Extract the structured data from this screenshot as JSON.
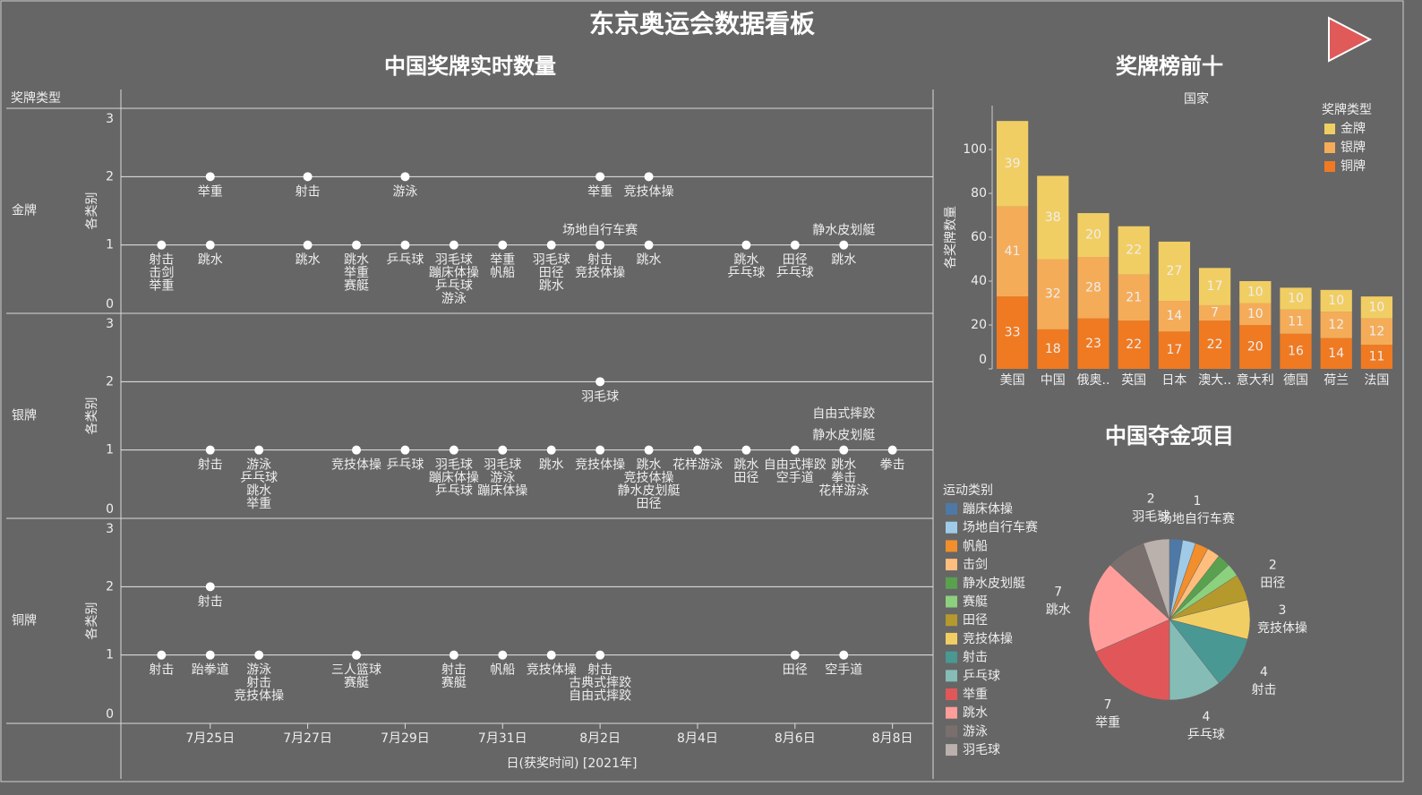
{
  "title": "东京奥运会数据看板",
  "chart_data": [
    {
      "type": "dot",
      "title": "中国奖牌实时数量",
      "row_title": "奖牌类型",
      "xlabel": "日(获奖时间) [2021年]",
      "ylabel": "各类别",
      "xlim": [
        "2021-07-23T04:00",
        "2021-08-08T20:00"
      ],
      "xticks": [
        {
          "value": "2021-07-25",
          "label": "7月25日"
        },
        {
          "value": "2021-07-27",
          "label": "7月27日"
        },
        {
          "value": "2021-07-29",
          "label": "7月29日"
        },
        {
          "value": "2021-07-31",
          "label": "7月31日"
        },
        {
          "value": "2021-08-02",
          "label": "8月2日"
        },
        {
          "value": "2021-08-04",
          "label": "8月4日"
        },
        {
          "value": "2021-08-06",
          "label": "8月6日"
        },
        {
          "value": "2021-08-08",
          "label": "8月8日"
        }
      ],
      "ylim": [
        0,
        3
      ],
      "yticks": [
        0,
        1,
        2,
        3
      ],
      "grid": true,
      "color": "#ffffff",
      "panels": [
        {
          "name": "金牌",
          "x": [
            "2021-07-24",
            "2021-07-25",
            "2021-07-25",
            "2021-07-27",
            "2021-07-27",
            "2021-07-28",
            "2021-07-29",
            "2021-07-29",
            "2021-07-30",
            "2021-07-31",
            "2021-08-01",
            "2021-08-02",
            "2021-08-02",
            "2021-08-03",
            "2021-08-03",
            "2021-08-05",
            "2021-08-06",
            "2021-08-07"
          ],
          "values": [
            1,
            2,
            1,
            2,
            1,
            1,
            2,
            1,
            1,
            1,
            1,
            2,
            1,
            2,
            1,
            1,
            1,
            1
          ],
          "labels": [
            [
              "射击",
              "击剑",
              "举重"
            ],
            [
              "举重"
            ],
            [
              "跳水"
            ],
            [
              "射击"
            ],
            [
              "跳水"
            ],
            [
              "跳水",
              "举重",
              "赛艇"
            ],
            [
              "游泳"
            ],
            [
              "乒乓球"
            ],
            [
              "羽毛球",
              "蹦床体操",
              "乒乓球",
              "游泳"
            ],
            [
              "举重",
              "帆船"
            ],
            [
              "羽毛球",
              "田径",
              "跳水"
            ],
            [
              "举重"
            ],
            [
              "射击",
              "竞技体操"
            ],
            [
              "竞技体操"
            ],
            [
              "跳水"
            ],
            [
              "跳水",
              "乒乓球"
            ],
            [
              "田径",
              "乒乓球"
            ],
            [
              "跳水"
            ]
          ],
          "labels_above": [
            null,
            null,
            null,
            null,
            null,
            null,
            null,
            null,
            null,
            null,
            null,
            null,
            [
              "场地自行车赛"
            ],
            null,
            null,
            null,
            null,
            [
              "静水皮划艇"
            ]
          ]
        },
        {
          "name": "银牌",
          "x": [
            "2021-07-25",
            "2021-07-26",
            "2021-07-28",
            "2021-07-29",
            "2021-07-30",
            "2021-07-31",
            "2021-08-01",
            "2021-08-02",
            "2021-08-02",
            "2021-08-03",
            "2021-08-04",
            "2021-08-05",
            "2021-08-06",
            "2021-08-07",
            "2021-08-08"
          ],
          "values": [
            1,
            1,
            1,
            1,
            1,
            1,
            1,
            2,
            1,
            1,
            1,
            1,
            1,
            1,
            1
          ],
          "labels": [
            [
              "射击"
            ],
            [
              "游泳",
              "乒乓球",
              "跳水",
              "举重"
            ],
            [
              "竞技体操"
            ],
            [
              "乒乓球"
            ],
            [
              "羽毛球",
              "蹦床体操",
              "乒乓球"
            ],
            [
              "羽毛球",
              "游泳",
              "蹦床体操"
            ],
            [
              "跳水"
            ],
            [
              "羽毛球"
            ],
            [
              "竞技体操"
            ],
            [
              "跳水",
              "竞技体操",
              "静水皮划艇",
              "田径"
            ],
            [
              "花样游泳"
            ],
            [
              "跳水",
              "田径"
            ],
            [
              "自由式摔跤",
              "空手道"
            ],
            [
              "跳水",
              "拳击",
              "花样游泳"
            ],
            [
              "拳击"
            ]
          ],
          "labels_above": [
            null,
            null,
            null,
            null,
            null,
            null,
            null,
            null,
            null,
            null,
            null,
            null,
            null,
            [
              "自由式摔跤",
              "静水皮划艇"
            ],
            null
          ]
        },
        {
          "name": "铜牌",
          "x": [
            "2021-07-24",
            "2021-07-25",
            "2021-07-25",
            "2021-07-26",
            "2021-07-28",
            "2021-07-30",
            "2021-07-31",
            "2021-08-01",
            "2021-08-02",
            "2021-08-06",
            "2021-08-07"
          ],
          "values": [
            1,
            2,
            1,
            1,
            1,
            1,
            1,
            1,
            1,
            1,
            1
          ],
          "labels": [
            [
              "射击"
            ],
            [
              "射击"
            ],
            [
              "跆拳道"
            ],
            [
              "游泳",
              "射击",
              "竞技体操"
            ],
            [
              "三人篮球",
              "赛艇"
            ],
            [
              "射击",
              "赛艇"
            ],
            [
              "帆船"
            ],
            [
              "竞技体操"
            ],
            [
              "射击",
              "古典式摔跤",
              "自由式摔跤"
            ],
            [
              "田径"
            ],
            [
              "空手道"
            ]
          ],
          "labels_above": [
            null,
            null,
            null,
            null,
            null,
            null,
            null,
            null,
            null,
            null,
            null
          ]
        }
      ]
    },
    {
      "type": "stacked_bar",
      "title": "奖牌榜前十",
      "xlabel": "国家",
      "ylabel": "各奖牌数量",
      "legend_title": "奖牌类型",
      "legend": "top-right",
      "categories": [
        "美国",
        "中国",
        "俄奥..",
        "英国",
        "日本",
        "澳大..",
        "意大利",
        "德国",
        "荷兰",
        "法国"
      ],
      "series": [
        {
          "name": "金牌",
          "color": "#f1ce63",
          "values": [
            39,
            38,
            20,
            22,
            27,
            17,
            10,
            10,
            10,
            10
          ]
        },
        {
          "name": "银牌",
          "color": "#f5ac59",
          "values": [
            41,
            32,
            28,
            21,
            14,
            7,
            10,
            11,
            12,
            12
          ]
        },
        {
          "name": "铜牌",
          "color": "#ef7a22",
          "values": [
            33,
            18,
            23,
            22,
            17,
            22,
            20,
            16,
            14,
            11
          ]
        }
      ],
      "ylim": [
        0,
        120
      ],
      "yticks": [
        0,
        20,
        40,
        60,
        80,
        100
      ]
    },
    {
      "type": "pie",
      "title": "中国夺金项目",
      "legend_title": "运动类别",
      "categories": [
        "蹦床体操",
        "场地自行车赛",
        "帆船",
        "击剑",
        "静水皮划艇",
        "赛艇",
        "田径",
        "竞技体操",
        "射击",
        "乒乓球",
        "举重",
        "跳水",
        "游泳",
        "羽毛球"
      ],
      "values": [
        1,
        1,
        1,
        1,
        1,
        1,
        2,
        3,
        4,
        4,
        7,
        7,
        3,
        2
      ],
      "colors": [
        "#4e79a7",
        "#a0cbe8",
        "#f28e2b",
        "#ffbe7d",
        "#59a14f",
        "#8cd17d",
        "#b6992d",
        "#f1ce63",
        "#499894",
        "#86bcb6",
        "#e15759",
        "#ff9d9a",
        "#79706e",
        "#bab0ac"
      ],
      "data_labels": [
        false,
        true,
        false,
        false,
        false,
        false,
        true,
        true,
        true,
        true,
        true,
        true,
        false,
        true
      ]
    }
  ]
}
